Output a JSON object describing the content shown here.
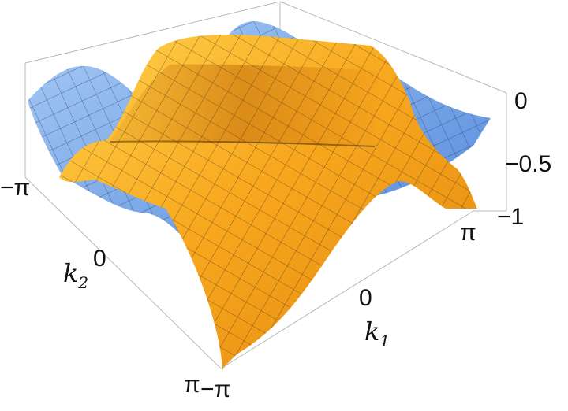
{
  "chart_data": {
    "type": "surface3d",
    "title": "",
    "x_axis": {
      "label": "k",
      "label_sub": "1",
      "ticks": [
        "−π",
        "0",
        "π"
      ],
      "range": [
        "-π",
        "π"
      ]
    },
    "y_axis": {
      "label": "k",
      "label_sub": "2",
      "ticks": [
        "−π",
        "0",
        "π"
      ],
      "range": [
        "-π",
        "π"
      ]
    },
    "z_axis": {
      "ticks": [
        "0",
        "−0.5",
        "−1"
      ],
      "range": [
        -1,
        0
      ]
    },
    "surfaces": [
      {
        "color": "#f4a21c",
        "color_light": "#ffd04a",
        "description_color": "orange"
      },
      {
        "color": "#5b8fe0",
        "color_light": "#9cc4f5",
        "description_color": "blue"
      }
    ],
    "mesh_lines": 24,
    "box": true
  }
}
